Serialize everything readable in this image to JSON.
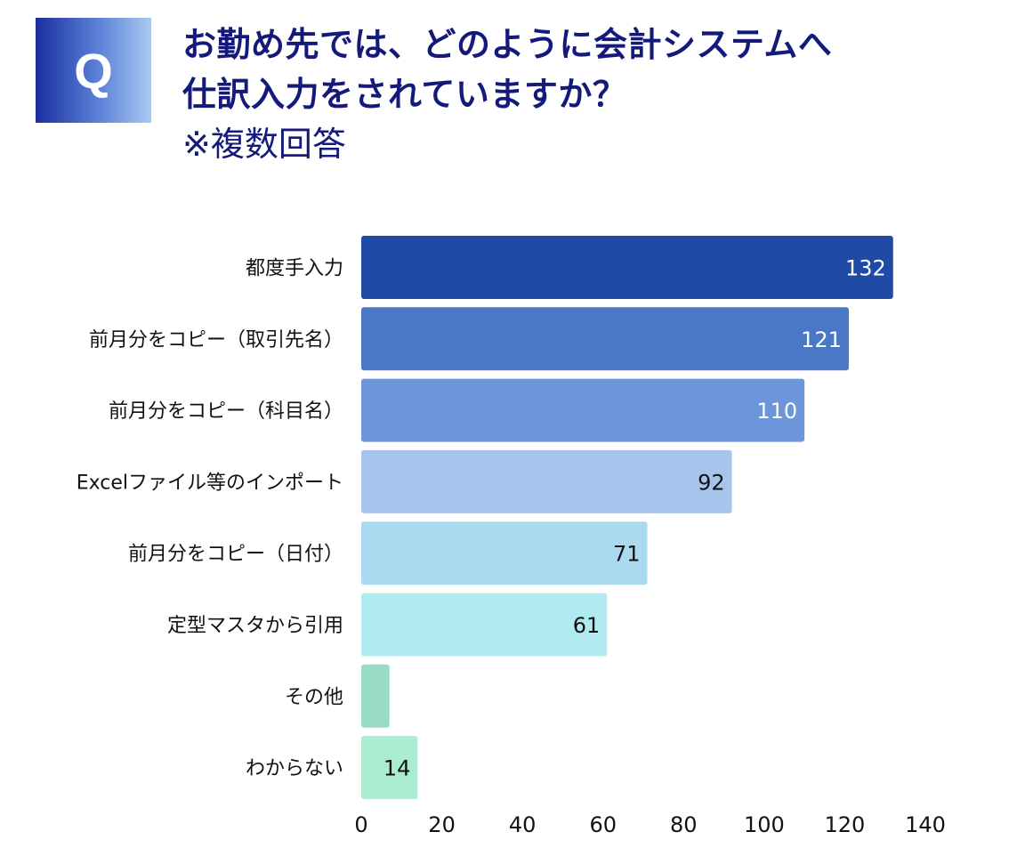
{
  "question_badge": "Q",
  "title_lines": [
    "お勤め先では、どのように会計システムへ",
    "仕訳入力をされていますか？"
  ],
  "subtitle": "※複数回答",
  "chart_data": {
    "type": "bar",
    "orientation": "horizontal",
    "categories": [
      "都度手入力",
      "前月分をコピー（取引先名）",
      "前月分をコピー（科目名）",
      "Excelファイル等のインポート",
      "前月分をコピー（日付）",
      "定型マスタから引用",
      "その他",
      "わからない"
    ],
    "values": [
      132,
      121,
      110,
      92,
      71,
      61,
      7,
      14
    ],
    "data_labels": [
      "132",
      "121",
      "110",
      "92",
      "71",
      "61",
      "",
      "14"
    ],
    "colors": [
      "#1f4aa6",
      "#4a78c7",
      "#6d96da",
      "#a7c4ec",
      "#abdaf0",
      "#b0ecef",
      "#98dcc6",
      "#a9eccf"
    ],
    "label_colors": [
      "#ffffff",
      "#ffffff",
      "#ffffff",
      "#111111",
      "#111111",
      "#111111",
      "#111111",
      "#111111"
    ],
    "xlim": [
      0,
      140
    ],
    "xticks": [
      0,
      20,
      40,
      60,
      80,
      100,
      120,
      140
    ],
    "grid": false,
    "legend": "none"
  }
}
